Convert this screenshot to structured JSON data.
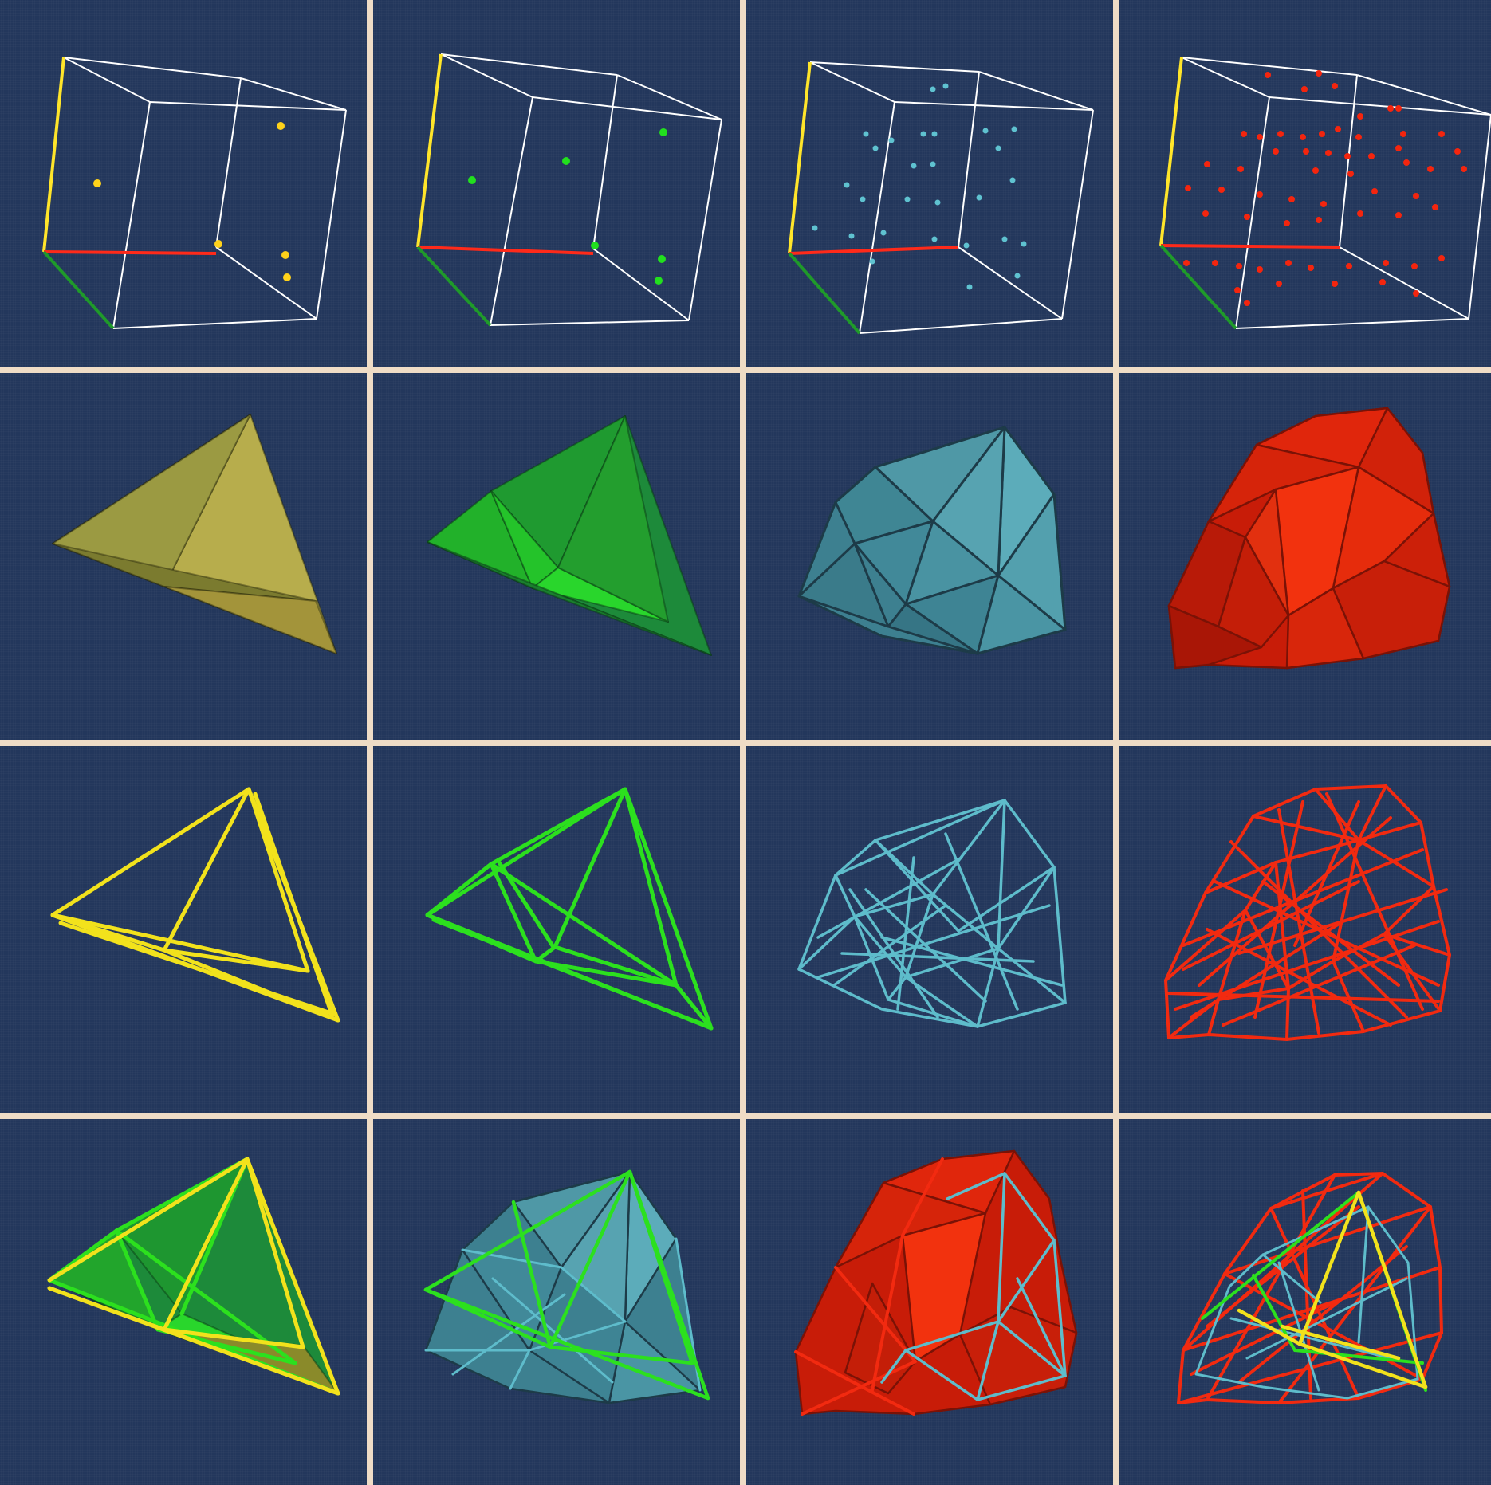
{
  "colors": {
    "background": "#23375c",
    "separator": "#efdcc6",
    "box": "#ffffff",
    "axis_x": "#ff2a1a",
    "axis_y": "#ffe52a",
    "axis_z": "#1f9a2a",
    "yellow": "#e2dc1e",
    "green": "#22d11e",
    "cyan": "#5fb8c6",
    "red": "#f0220c"
  },
  "grid": {
    "rows": [
      {
        "kind": "point-clouds",
        "panels": [
          {
            "label": "yellow-point-set",
            "color": "yellow"
          },
          {
            "label": "green-point-set",
            "color": "green"
          },
          {
            "label": "cyan-point-set",
            "color": "cyan"
          },
          {
            "label": "red-point-set",
            "color": "red"
          }
        ]
      },
      {
        "kind": "solid-hulls",
        "panels": [
          {
            "label": "yellow-solid-hull",
            "color": "yellow"
          },
          {
            "label": "green-solid-hull",
            "color": "green"
          },
          {
            "label": "cyan-solid-hull",
            "color": "cyan"
          },
          {
            "label": "red-solid-hull",
            "color": "red"
          }
        ]
      },
      {
        "kind": "wireframe-hulls",
        "panels": [
          {
            "label": "yellow-wireframe",
            "color": "yellow"
          },
          {
            "label": "green-wireframe",
            "color": "green"
          },
          {
            "label": "cyan-wireframe",
            "color": "cyan"
          },
          {
            "label": "red-wireframe",
            "color": "red"
          }
        ]
      },
      {
        "kind": "nested-overlays",
        "panels": [
          {
            "label": "yellow-over-green",
            "color": "yellow"
          },
          {
            "label": "green-over-cyan",
            "color": "green"
          },
          {
            "label": "cyan-over-red",
            "color": "cyan"
          },
          {
            "label": "all-combined",
            "color": "red"
          }
        ]
      }
    ]
  }
}
